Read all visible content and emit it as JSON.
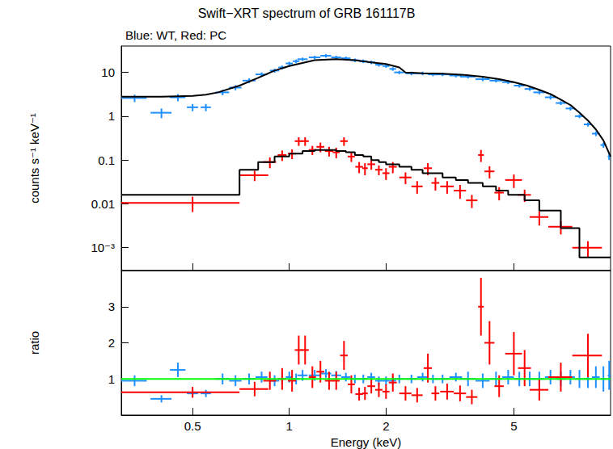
{
  "chart_data": [
    {
      "type": "scatter",
      "title": "Swift−XRT spectrum of GRB 161117B",
      "subtitle": "Blue: WT, Red: PC",
      "y_label": "counts s⁻¹ keV⁻¹",
      "log": true,
      "xlim": [
        0.3,
        10
      ],
      "xticks": [
        0.5,
        1,
        2,
        5
      ],
      "ylim": [
        0.0003,
        40
      ],
      "yticks": [
        {
          "value": 0.001,
          "label": "10⁻³"
        },
        0.01,
        0.1,
        1,
        10
      ],
      "tick_labels": "y",
      "series": [
        {
          "type": "scatter",
          "marker": "cross",
          "color": "#1f8fff",
          "x": [
            0.33,
            0.4,
            0.45,
            0.5,
            0.55,
            0.62,
            0.68,
            0.75,
            0.82,
            0.9,
            0.95,
            1.0,
            1.05,
            1.1,
            1.2,
            1.3,
            1.4,
            1.5,
            1.6,
            1.7,
            1.8,
            1.9,
            2.0,
            2.1,
            2.2,
            2.4,
            2.6,
            2.8,
            3.0,
            3.3,
            3.6,
            4.0,
            4.4,
            4.8,
            5.2,
            5.6,
            6.0,
            6.5,
            7.0,
            7.5,
            8.0,
            8.5,
            9.0,
            9.5,
            9.9
          ],
          "values": [
            2.6,
            1.2,
            2.7,
            1.6,
            1.6,
            3.5,
            4.5,
            6.5,
            9,
            11,
            13,
            16,
            18,
            20,
            22,
            24,
            22,
            21,
            19,
            18,
            17,
            15,
            14,
            12,
            10,
            9.5,
            9.5,
            9,
            9,
            8.5,
            8,
            7,
            6.5,
            6,
            5,
            4.2,
            3.5,
            2.7,
            2,
            1.5,
            1,
            0.65,
            0.4,
            0.22,
            0.12
          ],
          "xerr": [
            0.03,
            0.03,
            0.025,
            0.02,
            0.02,
            0.03,
            0.03,
            0.035,
            0.035,
            0.03,
            0.025,
            0.025,
            0.025,
            0.04,
            0.05,
            0.05,
            0.05,
            0.05,
            0.05,
            0.05,
            0.05,
            0.05,
            0.05,
            0.05,
            0.08,
            0.1,
            0.1,
            0.1,
            0.15,
            0.15,
            0.2,
            0.2,
            0.2,
            0.2,
            0.2,
            0.2,
            0.25,
            0.25,
            0.25,
            0.25,
            0.25,
            0.25,
            0.25,
            0.2,
            0.1
          ],
          "yerr": [
            0.5,
            0.3,
            0.5,
            0.3,
            0.3,
            0.5,
            0.6,
            0.8,
            1,
            1.2,
            1.3,
            1.5,
            1.7,
            1.8,
            2,
            2.2,
            2,
            2,
            1.8,
            1.7,
            1.6,
            1.4,
            1.3,
            1.1,
            0.9,
            0.9,
            0.9,
            0.8,
            0.8,
            0.8,
            0.7,
            0.7,
            0.6,
            0.6,
            0.5,
            0.4,
            0.35,
            0.3,
            0.2,
            0.15,
            0.1,
            0.07,
            0.05,
            0.03,
            0.02
          ]
        },
        {
          "type": "line",
          "line_style": "solid",
          "color": "#000000",
          "x": [
            0.3,
            0.4,
            0.5,
            0.55,
            0.6,
            0.7,
            0.8,
            0.9,
            1.0,
            1.2,
            1.4,
            1.6,
            1.8,
            2.0,
            2.2,
            2.3,
            2.6,
            3,
            3.5,
            4,
            4.5,
            5,
            5.5,
            6,
            6.5,
            7,
            7.5,
            8,
            8.5,
            9,
            9.5,
            10
          ],
          "values": [
            2.8,
            2.8,
            2.9,
            3.1,
            3.5,
            5,
            7.5,
            11,
            14,
            19,
            20,
            19,
            17,
            15.5,
            13,
            10,
            9.5,
            9.3,
            8.8,
            8,
            7,
            6,
            5,
            4,
            3.2,
            2.4,
            1.8,
            1.2,
            0.8,
            0.5,
            0.28,
            0.12
          ]
        },
        {
          "type": "scatter",
          "marker": "cross",
          "color": "#ff0000",
          "x": [
            0.5,
            0.78,
            0.87,
            0.95,
            1.02,
            1.07,
            1.12,
            1.18,
            1.25,
            1.33,
            1.4,
            1.48,
            1.56,
            1.65,
            1.72,
            1.8,
            1.9,
            2.0,
            2.1,
            2.3,
            2.5,
            2.7,
            2.85,
            3.1,
            3.4,
            3.7,
            3.95,
            4.2,
            4.5,
            5.0,
            5.4,
            6.0,
            7.0,
            8.5
          ],
          "values": [
            0.0105,
            0.045,
            0.09,
            0.13,
            0.14,
            0.27,
            0.27,
            0.17,
            0.2,
            0.16,
            0.15,
            0.27,
            0.12,
            0.07,
            0.065,
            0.08,
            0.06,
            0.05,
            0.07,
            0.04,
            0.025,
            0.065,
            0.03,
            0.025,
            0.02,
            0.012,
            0.13,
            0.055,
            0.018,
            0.035,
            0.016,
            0.005,
            0.003,
            0.001
          ],
          "xerr": [
            0.2,
            0.08,
            0.04,
            0.03,
            0.03,
            0.03,
            0.03,
            0.03,
            0.035,
            0.04,
            0.035,
            0.04,
            0.04,
            0.045,
            0.035,
            0.05,
            0.05,
            0.05,
            0.06,
            0.1,
            0.1,
            0.08,
            0.08,
            0.15,
            0.15,
            0.15,
            0.08,
            0.15,
            0.15,
            0.3,
            0.25,
            0.4,
            0.6,
            0.9
          ],
          "yerr": [
            0.004,
            0.012,
            0.025,
            0.035,
            0.035,
            0.06,
            0.06,
            0.04,
            0.05,
            0.04,
            0.04,
            0.06,
            0.03,
            0.02,
            0.02,
            0.02,
            0.015,
            0.015,
            0.02,
            0.012,
            0.008,
            0.02,
            0.01,
            0.008,
            0.007,
            0.004,
            0.04,
            0.017,
            0.006,
            0.012,
            0.005,
            0.0018,
            0.001,
            0.0004
          ]
        },
        {
          "type": "line",
          "line_style": "step",
          "color": "#000000",
          "x": [
            0.3,
            0.7,
            0.8,
            0.9,
            1.0,
            1.1,
            1.2,
            1.3,
            1.4,
            1.5,
            1.6,
            1.7,
            1.8,
            1.9,
            2.0,
            2.2,
            2.4,
            2.6,
            2.8,
            3.0,
            3.3,
            3.6,
            4.0,
            4.4,
            4.8,
            5.4,
            6.0,
            7.0,
            8.0,
            10.0
          ],
          "values": [
            0.016,
            0.06,
            0.09,
            0.12,
            0.14,
            0.16,
            0.17,
            0.17,
            0.16,
            0.15,
            0.13,
            0.12,
            0.1,
            0.09,
            0.08,
            0.07,
            0.06,
            0.05,
            0.05,
            0.04,
            0.035,
            0.03,
            0.025,
            0.02,
            0.016,
            0.012,
            0.007,
            0.0028,
            0.0006,
            0.0006
          ]
        }
      ]
    },
    {
      "type": "scatter",
      "x_label": "Energy (keV)",
      "y_label": "ratio",
      "log": "x",
      "xlim": [
        0.3,
        10
      ],
      "xticks": [
        0.5,
        1,
        2,
        5
      ],
      "ylim": [
        0,
        4
      ],
      "yticks": [
        1,
        2,
        3
      ],
      "hline": {
        "value": 1,
        "color": "#00ff00"
      },
      "series": [
        {
          "type": "scatter",
          "marker": "cross",
          "color": "#1f8fff",
          "x": [
            0.33,
            0.4,
            0.45,
            0.5,
            0.55,
            0.62,
            0.68,
            0.75,
            0.82,
            0.9,
            0.95,
            1.0,
            1.05,
            1.1,
            1.2,
            1.3,
            1.4,
            1.5,
            1.6,
            1.7,
            1.8,
            1.9,
            2.0,
            2.1,
            2.2,
            2.4,
            2.6,
            2.8,
            3.0,
            3.3,
            3.6,
            4.0,
            4.4,
            4.8,
            5.2,
            5.6,
            6.0,
            6.5,
            7.0,
            7.5,
            8.0,
            8.5,
            9.0,
            9.5,
            9.9
          ],
          "values": [
            0.95,
            0.45,
            1.25,
            0.6,
            0.6,
            1.0,
            0.95,
            1.0,
            1.05,
            0.95,
            1.0,
            1.05,
            1.0,
            1.1,
            1.1,
            1.15,
            1.1,
            1.05,
            1.0,
            1.0,
            1.05,
            0.95,
            0.95,
            0.95,
            1.0,
            1.0,
            1.05,
            1.0,
            1.0,
            1.05,
            1.0,
            0.95,
            1.0,
            1.05,
            1.0,
            1.0,
            1.0,
            1.05,
            1.0,
            1.05,
            1.0,
            1.0,
            1.05,
            1.0,
            1.1
          ],
          "xerr": [
            0.03,
            0.03,
            0.025,
            0.02,
            0.02,
            0.03,
            0.03,
            0.035,
            0.035,
            0.03,
            0.025,
            0.025,
            0.025,
            0.04,
            0.05,
            0.05,
            0.05,
            0.05,
            0.05,
            0.05,
            0.05,
            0.05,
            0.05,
            0.05,
            0.08,
            0.1,
            0.1,
            0.1,
            0.15,
            0.15,
            0.2,
            0.2,
            0.2,
            0.2,
            0.2,
            0.2,
            0.25,
            0.25,
            0.25,
            0.25,
            0.25,
            0.25,
            0.25,
            0.2,
            0.1
          ],
          "yerr": [
            0.15,
            0.1,
            0.2,
            0.1,
            0.1,
            0.15,
            0.15,
            0.15,
            0.15,
            0.15,
            0.15,
            0.15,
            0.15,
            0.15,
            0.15,
            0.12,
            0.12,
            0.12,
            0.12,
            0.12,
            0.12,
            0.12,
            0.12,
            0.12,
            0.12,
            0.12,
            0.12,
            0.12,
            0.12,
            0.12,
            0.2,
            0.2,
            0.2,
            0.2,
            0.2,
            0.2,
            0.2,
            0.2,
            0.2,
            0.2,
            0.25,
            0.25,
            0.3,
            0.35,
            0.4
          ]
        },
        {
          "type": "scatter",
          "marker": "cross",
          "color": "#ff0000",
          "x": [
            0.5,
            0.78,
            0.87,
            0.95,
            1.02,
            1.07,
            1.12,
            1.18,
            1.25,
            1.33,
            1.4,
            1.48,
            1.56,
            1.65,
            1.72,
            1.8,
            1.9,
            2.0,
            2.1,
            2.3,
            2.5,
            2.7,
            2.85,
            3.1,
            3.4,
            3.7,
            3.95,
            4.2,
            4.5,
            5.0,
            5.4,
            6.0,
            7.0,
            8.5
          ],
          "values": [
            0.63,
            0.72,
            0.95,
            1.0,
            0.95,
            1.8,
            1.8,
            1.05,
            1.2,
            0.95,
            0.95,
            1.65,
            0.85,
            0.58,
            0.6,
            0.8,
            0.7,
            0.65,
            0.9,
            0.6,
            0.55,
            1.3,
            0.6,
            0.65,
            0.6,
            0.5,
            3.0,
            2.0,
            0.8,
            1.7,
            1.3,
            0.7,
            1.05,
            1.65
          ],
          "xerr": [
            0.2,
            0.08,
            0.04,
            0.03,
            0.03,
            0.03,
            0.03,
            0.03,
            0.035,
            0.04,
            0.035,
            0.04,
            0.04,
            0.045,
            0.035,
            0.05,
            0.05,
            0.05,
            0.06,
            0.1,
            0.1,
            0.08,
            0.08,
            0.15,
            0.15,
            0.15,
            0.08,
            0.15,
            0.15,
            0.3,
            0.25,
            0.4,
            0.6,
            0.9
          ],
          "yerr": [
            0.15,
            0.2,
            0.25,
            0.3,
            0.3,
            0.4,
            0.4,
            0.3,
            0.3,
            0.25,
            0.25,
            0.4,
            0.25,
            0.18,
            0.18,
            0.2,
            0.2,
            0.2,
            0.25,
            0.2,
            0.2,
            0.4,
            0.2,
            0.22,
            0.22,
            0.2,
            0.8,
            0.6,
            0.3,
            0.6,
            0.5,
            0.3,
            0.4,
            0.6
          ]
        }
      ]
    }
  ]
}
